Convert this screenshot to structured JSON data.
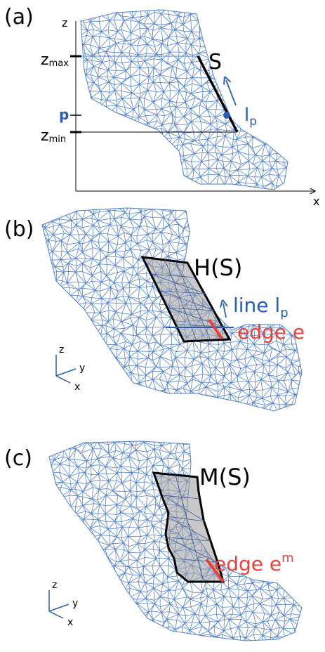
{
  "colors": {
    "mesh": "#4f7fcf",
    "mesh_light": "#7aa0e0",
    "accent_blue": "#2a5db0",
    "accent_red": "#e8413c",
    "black": "#000000",
    "fill_gray": "#9a9a9a"
  },
  "panels": [
    {
      "id": "a",
      "label": "(a)",
      "axis_z": "z",
      "axis_x": "x",
      "z_max": "z",
      "z_max_sub": "max",
      "p_label": "p",
      "z_min": "z",
      "z_min_sub": "min",
      "segment_label": "S",
      "line_label": "l",
      "line_label_sub": "p"
    },
    {
      "id": "b",
      "label": "(b)",
      "hull_label": "H(S)",
      "line_label": "line  l",
      "line_label_sub": "p",
      "edge_label": "edge e",
      "axes": {
        "z": "z",
        "y": "y",
        "x": "x"
      }
    },
    {
      "id": "c",
      "label": "(c)",
      "hull_label": "M(S)",
      "edge_label": "edge  e",
      "edge_label_sup": "m",
      "axes": {
        "z": "z",
        "y": "y",
        "x": "x"
      }
    }
  ]
}
